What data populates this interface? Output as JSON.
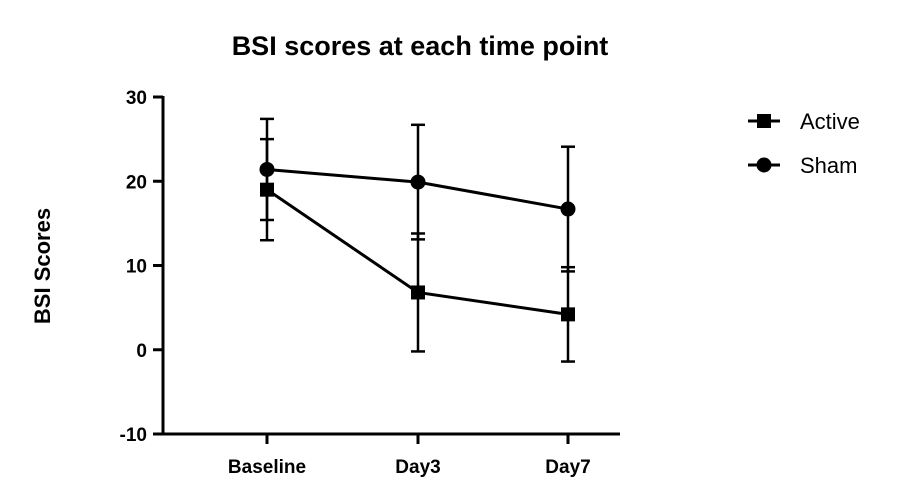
{
  "chart_data": {
    "type": "line",
    "title": "BSI scores at each time point",
    "xlabel": "",
    "ylabel": "BSI Scores",
    "categories": [
      "Baseline",
      "Day3",
      "Day7"
    ],
    "ylim": [
      -10,
      30
    ],
    "yticks": [
      -10,
      0,
      10,
      20,
      30
    ],
    "grid": false,
    "legend_position": "top-right",
    "series": [
      {
        "name": "Active",
        "marker": "square",
        "values": [
          19.0,
          6.8,
          4.2
        ],
        "error": [
          6.0,
          7.0,
          5.6
        ]
      },
      {
        "name": "Sham",
        "marker": "circle",
        "values": [
          21.4,
          19.9,
          16.7
        ],
        "error": [
          6.0,
          6.8,
          7.4
        ]
      }
    ],
    "colors": {
      "line": "#000000"
    }
  }
}
